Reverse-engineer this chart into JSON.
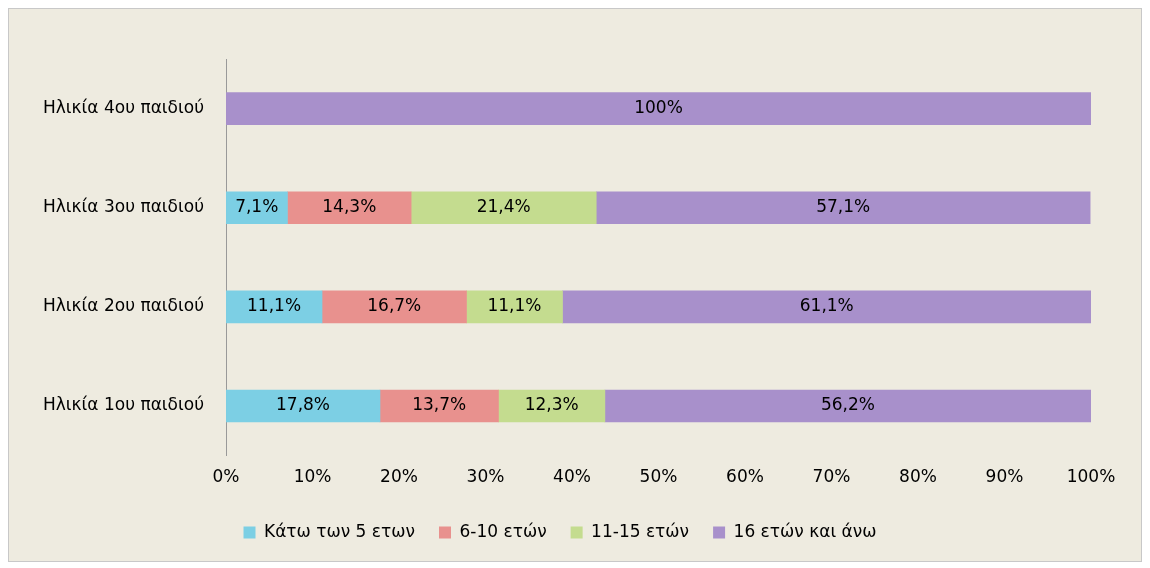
{
  "chart_data": {
    "type": "bar",
    "orientation": "horizontal",
    "stacked": true,
    "categories": [
      "Ηλικία 4ου παιδιού",
      "Ηλικία 3ου παιδιού",
      "Ηλικία 2ου παιδιού",
      "Ηλικία 1ου παιδιού"
    ],
    "series": [
      {
        "name": "Κάτω των 5 ετων",
        "color": "#7ccfe4",
        "values": [
          null,
          7.1,
          11.1,
          17.8
        ],
        "value_labels": [
          null,
          "7,1%",
          "11,1%",
          "17,8%"
        ]
      },
      {
        "name": "6-10 ετών",
        "color": "#e8918e",
        "values": [
          null,
          14.3,
          16.7,
          13.7
        ],
        "value_labels": [
          null,
          "14,3%",
          "16,7%",
          "13,7%"
        ]
      },
      {
        "name": "11-15 ετών",
        "color": "#c4dc8f",
        "values": [
          null,
          21.4,
          11.1,
          12.3
        ],
        "value_labels": [
          null,
          "21,4%",
          "11,1%",
          "12,3%"
        ]
      },
      {
        "name": "16 ετών και άνω",
        "color": "#a890cb",
        "values": [
          100,
          57.1,
          61.1,
          56.2
        ],
        "value_labels": [
          "100%",
          "57,1%",
          "61,1%",
          "56,2%"
        ]
      }
    ],
    "xlim": [
      0,
      100
    ],
    "xticks": [
      {
        "value": 0,
        "label": "0%"
      },
      {
        "value": 10,
        "label": "10%"
      },
      {
        "value": 20,
        "label": "20%"
      },
      {
        "value": 30,
        "label": "30%"
      },
      {
        "value": 40,
        "label": "40%"
      },
      {
        "value": 50,
        "label": "50%"
      },
      {
        "value": 60,
        "label": "60%"
      },
      {
        "value": 70,
        "label": "70%"
      },
      {
        "value": 80,
        "label": "80%"
      },
      {
        "value": 90,
        "label": "90%"
      },
      {
        "value": 100,
        "label": "100%"
      }
    ],
    "grid": false,
    "legend": "bottom"
  }
}
